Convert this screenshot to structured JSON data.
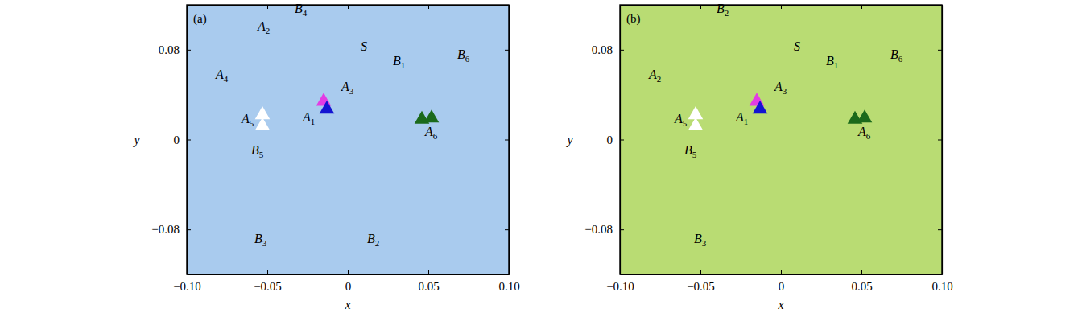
{
  "chart_data": [
    {
      "type": "scatter",
      "title": "(a)",
      "x_label": "x",
      "y_label": "y",
      "xlim": [
        -0.1,
        0.1
      ],
      "ylim": [
        -0.12,
        0.12
      ],
      "xticks": [
        {
          "value": -0.1,
          "label": "−0.10"
        },
        {
          "value": -0.05,
          "label": "−0.05"
        },
        0,
        0.05,
        {
          "value": 0.1,
          "label": "0.10"
        }
      ],
      "yticks": [
        {
          "value": -0.08,
          "label": "−0.08"
        },
        0,
        0.08
      ],
      "color": "#a9cbee",
      "series": [
        {
          "color": "#e33ce3",
          "marker": "triangle",
          "x": [
            -0.015
          ],
          "y": [
            0.034
          ]
        },
        {
          "color": "#1414d2",
          "marker": "triangle",
          "x": [
            -0.013
          ],
          "y": [
            0.027
          ]
        },
        {
          "color": "#ffffff",
          "marker": "triangle",
          "x": [
            -0.053,
            -0.053
          ],
          "y": [
            0.022,
            0.012
          ]
        },
        {
          "color": "#1b6a1b",
          "marker": "triangle",
          "x": [
            0.046,
            0.052
          ],
          "y": [
            0.018,
            0.019
          ]
        }
      ],
      "annotations": [
        {
          "text": "A2",
          "x": -0.056,
          "y": 0.097
        },
        {
          "text": "B4",
          "x": -0.033,
          "y": 0.113
        },
        {
          "text": "S",
          "x": 0.008,
          "y": 0.079
        },
        {
          "text": "B1",
          "x": 0.028,
          "y": 0.066
        },
        {
          "text": "B6",
          "x": 0.068,
          "y": 0.072
        },
        {
          "text": "A3",
          "x": -0.004,
          "y": 0.043
        },
        {
          "text": "A4",
          "x": -0.082,
          "y": 0.054
        },
        {
          "text": "A5",
          "x": -0.066,
          "y": 0.015
        },
        {
          "text": "A1",
          "x": -0.028,
          "y": 0.016
        },
        {
          "text": "A6",
          "x": 0.048,
          "y": 0.003
        },
        {
          "text": "B5",
          "x": -0.06,
          "y": -0.013
        },
        {
          "text": "B3",
          "x": -0.058,
          "y": -0.092
        },
        {
          "text": "B2",
          "x": 0.012,
          "y": -0.092
        }
      ]
    },
    {
      "type": "scatter",
      "title": "(b)",
      "x_label": "x",
      "y_label": "y",
      "xlim": [
        -0.1,
        0.1
      ],
      "ylim": [
        -0.12,
        0.12
      ],
      "xticks": [
        {
          "value": -0.1,
          "label": "−0.10"
        },
        {
          "value": -0.05,
          "label": "−0.05"
        },
        0,
        0.05,
        {
          "value": 0.1,
          "label": "0.10"
        }
      ],
      "yticks": [
        {
          "value": -0.08,
          "label": "−0.08"
        },
        0,
        0.08
      ],
      "color": "#b9dc73",
      "series": [
        {
          "color": "#e33ce3",
          "marker": "triangle",
          "x": [
            -0.015
          ],
          "y": [
            0.034
          ]
        },
        {
          "color": "#1414d2",
          "marker": "triangle",
          "x": [
            -0.013
          ],
          "y": [
            0.027
          ]
        },
        {
          "color": "#ffffff",
          "marker": "triangle",
          "x": [
            -0.053,
            -0.053
          ],
          "y": [
            0.022,
            0.012
          ]
        },
        {
          "color": "#1b6a1b",
          "marker": "triangle",
          "x": [
            0.046,
            0.052
          ],
          "y": [
            0.018,
            0.019
          ]
        }
      ],
      "annotations": [
        {
          "text": "B2",
          "x": -0.04,
          "y": 0.113
        },
        {
          "text": "S",
          "x": 0.008,
          "y": 0.079
        },
        {
          "text": "B1",
          "x": 0.028,
          "y": 0.066
        },
        {
          "text": "B6",
          "x": 0.068,
          "y": 0.072
        },
        {
          "text": "A2",
          "x": -0.082,
          "y": 0.054
        },
        {
          "text": "A3",
          "x": -0.004,
          "y": 0.043
        },
        {
          "text": "A5",
          "x": -0.066,
          "y": 0.015
        },
        {
          "text": "A1",
          "x": -0.028,
          "y": 0.016
        },
        {
          "text": "A6",
          "x": 0.048,
          "y": 0.003
        },
        {
          "text": "B5",
          "x": -0.06,
          "y": -0.013
        },
        {
          "text": "B3",
          "x": -0.054,
          "y": -0.092
        }
      ]
    }
  ]
}
